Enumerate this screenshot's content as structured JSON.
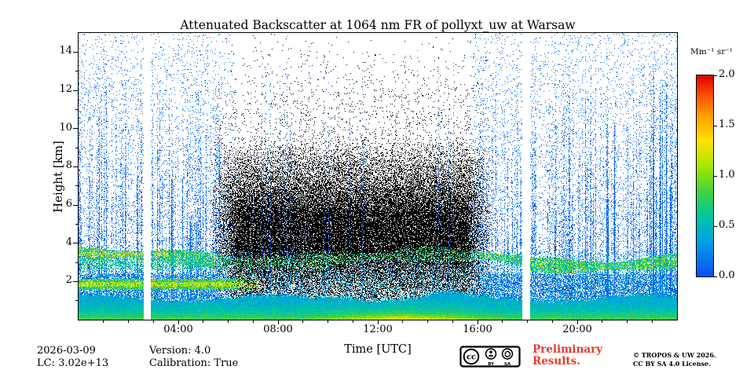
{
  "chart_data": {
    "type": "heatmap",
    "title": "Attenuated Backscatter at 1064 nm FR of pollyxt_uw at Warsaw",
    "xlabel": "Time [UTC]",
    "ylabel": "Height [km]",
    "x_range_hours": [
      0,
      24
    ],
    "x_major_ticks": [
      {
        "hour": 4,
        "label": "04:00"
      },
      {
        "hour": 8,
        "label": "08:00"
      },
      {
        "hour": 12,
        "label": "12:00"
      },
      {
        "hour": 16,
        "label": "16:00"
      },
      {
        "hour": 20,
        "label": "20:00"
      }
    ],
    "x_minor_tick_every_hours": 1,
    "y_range_km": [
      0,
      15
    ],
    "y_major_ticks": [
      {
        "km": 2,
        "label": "2"
      },
      {
        "km": 4,
        "label": "4"
      },
      {
        "km": 6,
        "label": "6"
      },
      {
        "km": 8,
        "label": "8"
      },
      {
        "km": 10,
        "label": "10"
      },
      {
        "km": 12,
        "label": "12"
      },
      {
        "km": 14,
        "label": "14"
      }
    ],
    "y_minor_tick_every_km": 1,
    "colorbar": {
      "label": "Mm⁻¹ sr⁻¹",
      "min": 0,
      "max": 2,
      "ticks": [
        {
          "value": 2.0,
          "label": "2.0"
        },
        {
          "value": 1.5,
          "label": "1.5"
        },
        {
          "value": 1.0,
          "label": "1.0"
        },
        {
          "value": 0.5,
          "label": "0.5"
        },
        {
          "value": 0.0,
          "label": "0.0"
        }
      ]
    },
    "colormap": {
      "stops": [
        [
          0.0,
          "#0a50f0"
        ],
        [
          0.35,
          "#00a0e6"
        ],
        [
          0.6,
          "#00c8a0"
        ],
        [
          0.85,
          "#46d23c"
        ],
        [
          1.1,
          "#aae600"
        ],
        [
          1.35,
          "#ffe100"
        ],
        [
          1.6,
          "#ffa000"
        ],
        [
          1.8,
          "#ff5000"
        ],
        [
          2.0,
          "#dc0000"
        ]
      ]
    },
    "features": {
      "data_gaps_hours": [
        [
          2.6,
          2.9
        ],
        [
          17.8,
          18.1
        ]
      ],
      "daytime_hours": [
        5.2,
        16.6
      ],
      "surface_layer_top_km": 1.2,
      "elevated_band_center_km": 3.2,
      "morning_band_centers_km": [
        1.85,
        2.95,
        3.35
      ],
      "description": "Dense green/yellow aerosol below ~1.2 km all day; speckled green/yellow aerosol band near 3 km; blue background noise speckle at night; black low-SNR speckle during daytime; two white vertical data gaps."
    },
    "noise_seed": 7
  },
  "footer": {
    "date": "2026-03-09",
    "lc": "LC: 3.02e+13",
    "version": "Version: 4.0",
    "calibration": "Calibration: True",
    "preliminary": {
      "line1": "Preliminary",
      "line2": "Results.",
      "color": "#e8392b"
    },
    "license": {
      "cc": "cc",
      "by": "BY",
      "sa": "SA",
      "line1": "© TROPOS & UW 2026.",
      "line2": "CC BY SA 4.0 License."
    }
  }
}
